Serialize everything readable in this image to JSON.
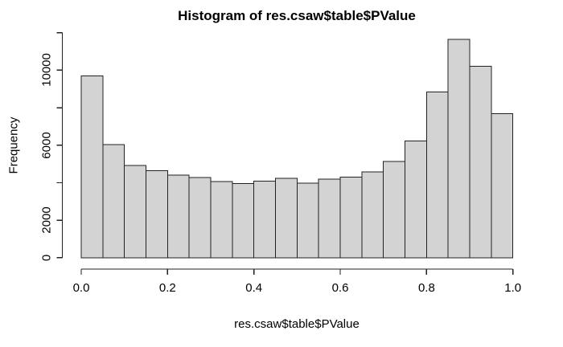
{
  "chart_data": {
    "type": "bar",
    "subtype": "histogram",
    "title": "Histogram of res.csaw$table$PValue",
    "xlabel": "res.csaw$table$PValue",
    "ylabel": "Frequency",
    "breaks": [
      0.0,
      0.05,
      0.1,
      0.15,
      0.2,
      0.25,
      0.3,
      0.35,
      0.4,
      0.45,
      0.5,
      0.55,
      0.6,
      0.65,
      0.7,
      0.75,
      0.8,
      0.85,
      0.9,
      0.95,
      1.0
    ],
    "counts": [
      9700,
      6040,
      4930,
      4640,
      4400,
      4280,
      4060,
      3960,
      4090,
      4230,
      3970,
      4200,
      4300,
      4580,
      5140,
      6220,
      8850,
      11650,
      10200,
      7690
    ],
    "xlim": [
      0.0,
      1.0
    ],
    "ylim": [
      0,
      12000
    ],
    "x_ticks": [
      0.0,
      0.2,
      0.4,
      0.6,
      0.8,
      1.0
    ],
    "x_tick_labels": [
      "0.0",
      "0.2",
      "0.4",
      "0.6",
      "0.8",
      "1.0"
    ],
    "y_ticks": [
      0,
      2000,
      4000,
      6000,
      8000,
      10000,
      12000
    ],
    "y_tick_labels": [
      "0",
      "2000",
      "",
      "6000",
      "",
      "10000",
      ""
    ],
    "grid": false,
    "legend": null,
    "colors": {
      "background": "#ffffff",
      "bar_fill": "#d3d3d3",
      "bar_border": "#222222",
      "axis": "#222222",
      "text": "#000000"
    }
  }
}
